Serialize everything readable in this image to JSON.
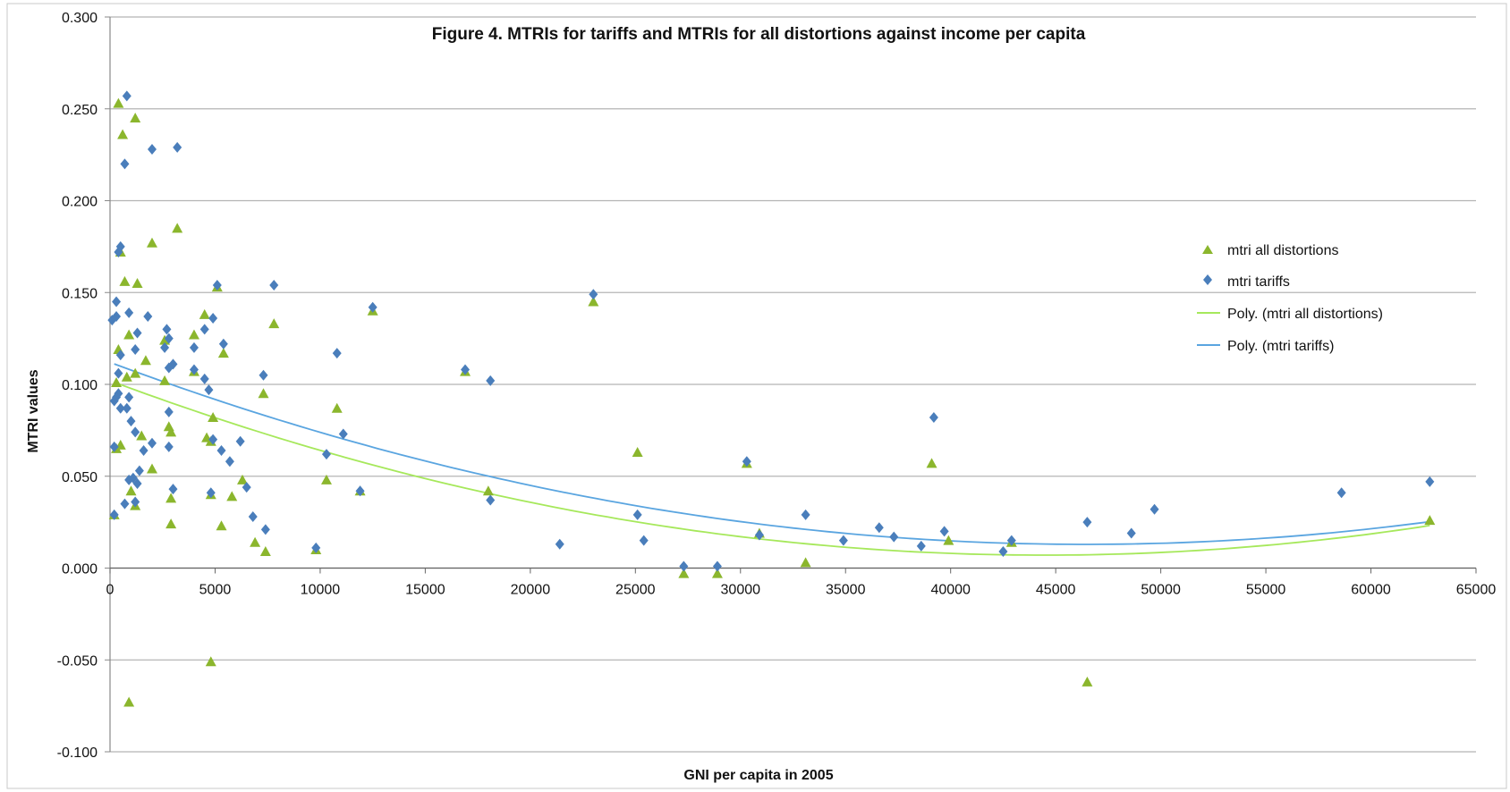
{
  "chart_data": {
    "type": "scatter",
    "title": "Figure 4. MTRIs for tariffs and MTRIs for all distortions against income per capita",
    "xlabel": "GNI per capita in 2005",
    "ylabel": "MTRI values",
    "xlim": [
      0,
      65000
    ],
    "ylim": [
      -0.1,
      0.3
    ],
    "x_ticks": [
      "0",
      "5000",
      "10000",
      "15000",
      "20000",
      "25000",
      "30000",
      "35000",
      "40000",
      "45000",
      "50000",
      "55000",
      "60000",
      "65000"
    ],
    "y_ticks": [
      "-0.100",
      "-0.050",
      "0.000",
      "0.050",
      "0.100",
      "0.150",
      "0.200",
      "0.250",
      "0.300"
    ],
    "grid": "horizontal",
    "legend_position": "right",
    "colors": {
      "all_distortions": "#8bb62d",
      "tariffs": "#4a7ebb",
      "poly_all": "#a6e85b",
      "poly_tariffs": "#5aa5e0"
    },
    "series": [
      {
        "name": "mtri all distortions",
        "marker": "triangle",
        "points": [
          [
            400,
            0.253
          ],
          [
            600,
            0.236
          ],
          [
            1200,
            0.245
          ],
          [
            2000,
            0.177
          ],
          [
            3200,
            0.185
          ],
          [
            500,
            0.172
          ],
          [
            700,
            0.156
          ],
          [
            1300,
            0.155
          ],
          [
            900,
            0.127
          ],
          [
            400,
            0.119
          ],
          [
            1200,
            0.106
          ],
          [
            300,
            0.101
          ],
          [
            800,
            0.104
          ],
          [
            2600,
            0.124
          ],
          [
            2600,
            0.102
          ],
          [
            1700,
            0.113
          ],
          [
            2800,
            0.077
          ],
          [
            2900,
            0.074
          ],
          [
            1500,
            0.072
          ],
          [
            2000,
            0.054
          ],
          [
            500,
            0.067
          ],
          [
            300,
            0.065
          ],
          [
            1000,
            0.042
          ],
          [
            1200,
            0.034
          ],
          [
            200,
            0.029
          ],
          [
            2900,
            0.038
          ],
          [
            2900,
            0.024
          ],
          [
            4000,
            0.127
          ],
          [
            4500,
            0.138
          ],
          [
            4000,
            0.107
          ],
          [
            5400,
            0.117
          ],
          [
            5100,
            0.153
          ],
          [
            4900,
            0.082
          ],
          [
            4600,
            0.071
          ],
          [
            4800,
            0.069
          ],
          [
            4800,
            0.04
          ],
          [
            5800,
            0.039
          ],
          [
            5300,
            0.023
          ],
          [
            6300,
            0.048
          ],
          [
            6900,
            0.014
          ],
          [
            7400,
            0.009
          ],
          [
            7300,
            0.095
          ],
          [
            7800,
            0.133
          ],
          [
            9800,
            0.01
          ],
          [
            10300,
            0.048
          ],
          [
            10800,
            0.087
          ],
          [
            11900,
            0.042
          ],
          [
            12500,
            0.14
          ],
          [
            16900,
            0.107
          ],
          [
            18000,
            0.042
          ],
          [
            23000,
            0.145
          ],
          [
            25100,
            0.063
          ],
          [
            27300,
            -0.003
          ],
          [
            28900,
            -0.003
          ],
          [
            30300,
            0.057
          ],
          [
            30900,
            0.019
          ],
          [
            33100,
            0.003
          ],
          [
            39100,
            0.057
          ],
          [
            39900,
            0.015
          ],
          [
            42900,
            0.014
          ],
          [
            4800,
            -0.051
          ],
          [
            900,
            -0.073
          ],
          [
            46500,
            -0.062
          ],
          [
            62800,
            0.026
          ]
        ]
      },
      {
        "name": "mtri tariffs",
        "marker": "diamond",
        "points": [
          [
            800,
            0.257
          ],
          [
            700,
            0.22
          ],
          [
            2000,
            0.228
          ],
          [
            3200,
            0.229
          ],
          [
            500,
            0.175
          ],
          [
            400,
            0.172
          ],
          [
            300,
            0.145
          ],
          [
            100,
            0.135
          ],
          [
            300,
            0.137
          ],
          [
            900,
            0.139
          ],
          [
            1800,
            0.137
          ],
          [
            1300,
            0.128
          ],
          [
            500,
            0.116
          ],
          [
            400,
            0.106
          ],
          [
            1200,
            0.119
          ],
          [
            200,
            0.091
          ],
          [
            400,
            0.095
          ],
          [
            300,
            0.093
          ],
          [
            500,
            0.087
          ],
          [
            800,
            0.087
          ],
          [
            900,
            0.093
          ],
          [
            1000,
            0.08
          ],
          [
            1200,
            0.074
          ],
          [
            1600,
            0.064
          ],
          [
            2000,
            0.068
          ],
          [
            2700,
            0.13
          ],
          [
            2800,
            0.125
          ],
          [
            2600,
            0.12
          ],
          [
            2800,
            0.109
          ],
          [
            3000,
            0.111
          ],
          [
            2800,
            0.085
          ],
          [
            2800,
            0.066
          ],
          [
            3000,
            0.043
          ],
          [
            200,
            0.066
          ],
          [
            200,
            0.029
          ],
          [
            700,
            0.035
          ],
          [
            900,
            0.048
          ],
          [
            1100,
            0.049
          ],
          [
            1300,
            0.046
          ],
          [
            1400,
            0.053
          ],
          [
            1200,
            0.036
          ],
          [
            4000,
            0.12
          ],
          [
            4500,
            0.13
          ],
          [
            4000,
            0.108
          ],
          [
            4500,
            0.103
          ],
          [
            4900,
            0.136
          ],
          [
            5100,
            0.154
          ],
          [
            5400,
            0.122
          ],
          [
            4700,
            0.097
          ],
          [
            4900,
            0.07
          ],
          [
            5300,
            0.064
          ],
          [
            5700,
            0.058
          ],
          [
            6200,
            0.069
          ],
          [
            6500,
            0.044
          ],
          [
            4800,
            0.041
          ],
          [
            6800,
            0.028
          ],
          [
            7400,
            0.021
          ],
          [
            7300,
            0.105
          ],
          [
            7800,
            0.154
          ],
          [
            9800,
            0.011
          ],
          [
            10300,
            0.062
          ],
          [
            10800,
            0.117
          ],
          [
            11100,
            0.073
          ],
          [
            11900,
            0.042
          ],
          [
            12500,
            0.142
          ],
          [
            16900,
            0.108
          ],
          [
            18100,
            0.102
          ],
          [
            18100,
            0.037
          ],
          [
            21400,
            0.013
          ],
          [
            23000,
            0.149
          ],
          [
            25100,
            0.029
          ],
          [
            25400,
            0.015
          ],
          [
            27300,
            0.001
          ],
          [
            28900,
            0.001
          ],
          [
            30300,
            0.058
          ],
          [
            30900,
            0.018
          ],
          [
            33100,
            0.029
          ],
          [
            34900,
            0.015
          ],
          [
            36600,
            0.022
          ],
          [
            37300,
            0.017
          ],
          [
            38600,
            0.012
          ],
          [
            39200,
            0.082
          ],
          [
            39700,
            0.02
          ],
          [
            42500,
            0.009
          ],
          [
            42900,
            0.015
          ],
          [
            46500,
            0.025
          ],
          [
            48600,
            0.019
          ],
          [
            49700,
            0.032
          ],
          [
            58600,
            0.041
          ],
          [
            62800,
            0.047
          ]
        ]
      },
      {
        "name": "Poly. (mtri all distortions)",
        "type": "curve",
        "coefficients": {
          "c0": 0.102,
          "c1": -4.27e-06,
          "c2": 4.8e-11
        },
        "x_range": [
          200,
          62800
        ]
      },
      {
        "name": "Poly. (mtri tariffs)",
        "type": "curve",
        "coefficients": {
          "c0": 0.112,
          "c1": -4.27e-06,
          "c2": 4.6e-11
        },
        "x_range": [
          200,
          62800
        ]
      }
    ]
  }
}
